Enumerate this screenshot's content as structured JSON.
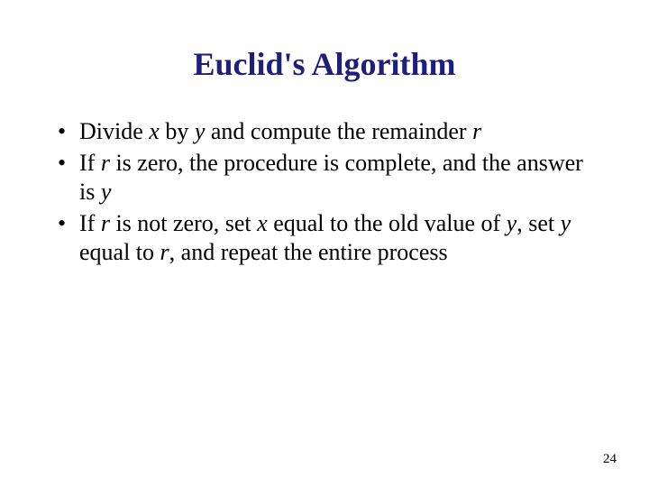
{
  "title": {
    "text": "Euclid's Algorithm",
    "fontsize": 36,
    "color": "#1f1f7a"
  },
  "bullets": {
    "fontsize": 26,
    "color": "#000000",
    "line_height": 1.25,
    "items": [
      {
        "segments": [
          {
            "t": "Divide ",
            "i": false
          },
          {
            "t": "x",
            "i": true
          },
          {
            "t": " by ",
            "i": false
          },
          {
            "t": "y",
            "i": true
          },
          {
            "t": " and compute the remainder ",
            "i": false
          },
          {
            "t": "r",
            "i": true
          }
        ]
      },
      {
        "segments": [
          {
            "t": "If ",
            "i": false
          },
          {
            "t": "r",
            "i": true
          },
          {
            "t": " is zero, the procedure is complete, and the answer is ",
            "i": false
          },
          {
            "t": "y",
            "i": true
          }
        ]
      },
      {
        "segments": [
          {
            "t": "If ",
            "i": false
          },
          {
            "t": "r",
            "i": true
          },
          {
            "t": " is not zero, set ",
            "i": false
          },
          {
            "t": "x",
            "i": true
          },
          {
            "t": " equal to the old value of ",
            "i": false
          },
          {
            "t": "y",
            "i": true
          },
          {
            "t": ", set ",
            "i": false
          },
          {
            "t": "y",
            "i": true
          },
          {
            "t": " equal to ",
            "i": false
          },
          {
            "t": "r",
            "i": true
          },
          {
            "t": ", and repeat the entire process",
            "i": false
          }
        ]
      }
    ]
  },
  "page_number": {
    "text": "24",
    "fontsize": 15,
    "color": "#000000"
  },
  "background_color": "#ffffff"
}
